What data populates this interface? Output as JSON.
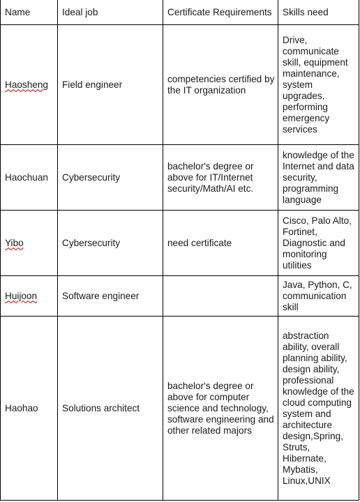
{
  "headers": {
    "name": "Name",
    "job": "Ideal job",
    "cert": "Certificate Requirements",
    "skills": "Skills need"
  },
  "rows": [
    {
      "name": "Haosheng",
      "job": "Field engineer",
      "cert": "competencies certified by the IT organization",
      "skills": "Drive, communicate skill, equipment maintenance, system upgrades, performing emergency services"
    },
    {
      "name": "Haochuan",
      "job": "Cybersecurity",
      "cert": "bachelor's degree or above for IT/Internet security/Math/AI etc.",
      "skills": "knowledge of the Internet and data security, programming language"
    },
    {
      "name": "Yibo",
      "job": "Cybersecurity",
      "cert": "need certificate",
      "skills": "Cisco, Palo Alto, Fortinet, Diagnostic and monitoring utilities"
    },
    {
      "name": "Huijoon",
      "job": "Software engineer",
      "cert": "",
      "skills": "Java, Python, C, communication skill"
    },
    {
      "name": "Haohao",
      "job": "Solutions architect",
      "cert": " bachelor's degree or above for computer science and technology, software engineering and other related majors",
      "skills": "abstraction ability, overall planning ability, design ability, professional knowledge of the cloud computing system and architecture design,Spring, Struts, Hibernate, Mybatis, Linux,UNIX"
    }
  ]
}
